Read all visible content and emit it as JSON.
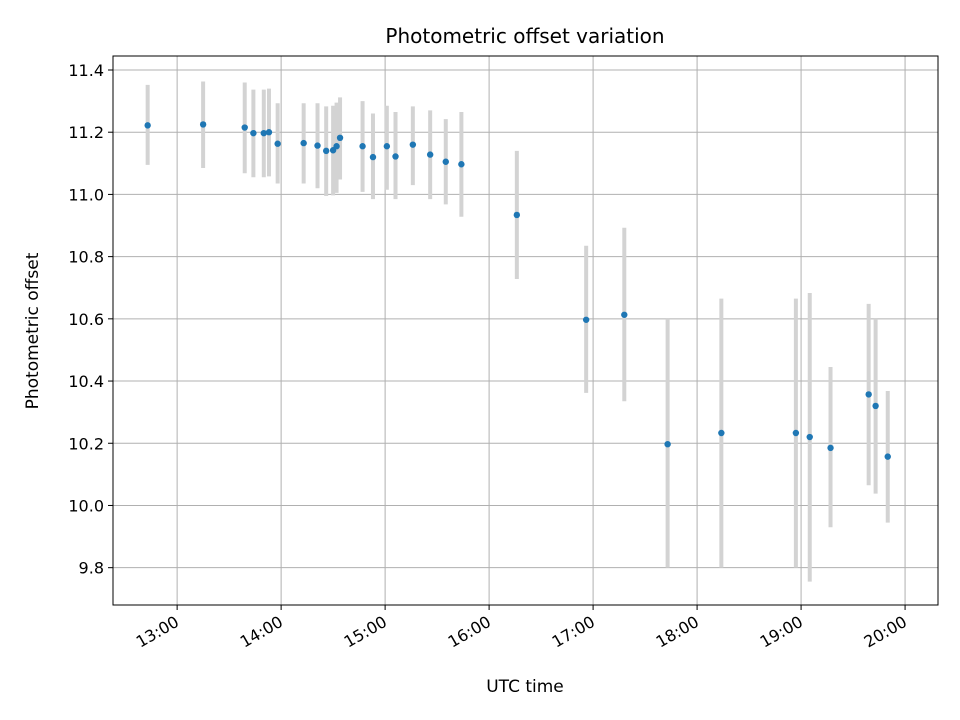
{
  "chart_data": {
    "type": "scatter",
    "title": "Photometric offset variation",
    "xlabel": "UTC time",
    "ylabel": "Photometric offset",
    "x_ticks": [
      "13:00",
      "14:00",
      "15:00",
      "16:00",
      "17:00",
      "18:00",
      "19:00",
      "20:00"
    ],
    "y_ticks": [
      "9.8",
      "10.0",
      "10.2",
      "10.4",
      "10.6",
      "10.8",
      "11.0",
      "11.2",
      "11.4"
    ],
    "xlim": [
      "12:23",
      "20:19"
    ],
    "ylim": [
      9.68,
      11.445
    ],
    "grid": true,
    "point_color": "#1f77b4",
    "errorbar_color": "#d3d3d3",
    "points": [
      {
        "x": "12:43",
        "y": 11.222,
        "ylow": 11.095,
        "yhigh": 11.352
      },
      {
        "x": "13:15",
        "y": 11.225,
        "ylow": 11.085,
        "yhigh": 11.363
      },
      {
        "x": "13:39",
        "y": 11.215,
        "ylow": 11.068,
        "yhigh": 11.36
      },
      {
        "x": "13:44",
        "y": 11.197,
        "ylow": 11.055,
        "yhigh": 11.337
      },
      {
        "x": "13:50",
        "y": 11.197,
        "ylow": 11.055,
        "yhigh": 11.337
      },
      {
        "x": "13:53",
        "y": 11.2,
        "ylow": 11.058,
        "yhigh": 11.34
      },
      {
        "x": "13:58",
        "y": 11.163,
        "ylow": 11.035,
        "yhigh": 11.293
      },
      {
        "x": "14:13",
        "y": 11.165,
        "ylow": 11.035,
        "yhigh": 11.293
      },
      {
        "x": "14:21",
        "y": 11.157,
        "ylow": 11.02,
        "yhigh": 11.293
      },
      {
        "x": "14:26",
        "y": 11.14,
        "ylow": 10.995,
        "yhigh": 11.283
      },
      {
        "x": "14:30",
        "y": 11.142,
        "ylow": 10.997,
        "yhigh": 11.285
      },
      {
        "x": "14:32",
        "y": 11.155,
        "ylow": 11.005,
        "yhigh": 11.295
      },
      {
        "x": "14:34",
        "y": 11.182,
        "ylow": 11.048,
        "yhigh": 11.312
      },
      {
        "x": "14:47",
        "y": 11.155,
        "ylow": 11.008,
        "yhigh": 11.3
      },
      {
        "x": "14:53",
        "y": 11.12,
        "ylow": 10.985,
        "yhigh": 11.26
      },
      {
        "x": "15:01",
        "y": 11.155,
        "ylow": 11.015,
        "yhigh": 11.285
      },
      {
        "x": "15:06",
        "y": 11.122,
        "ylow": 10.985,
        "yhigh": 11.265
      },
      {
        "x": "15:16",
        "y": 11.16,
        "ylow": 11.03,
        "yhigh": 11.283
      },
      {
        "x": "15:26",
        "y": 11.128,
        "ylow": 10.985,
        "yhigh": 11.27
      },
      {
        "x": "15:35",
        "y": 11.105,
        "ylow": 10.968,
        "yhigh": 11.242
      },
      {
        "x": "15:44",
        "y": 11.097,
        "ylow": 10.928,
        "yhigh": 11.265
      },
      {
        "x": "16:16",
        "y": 10.934,
        "ylow": 10.728,
        "yhigh": 11.14
      },
      {
        "x": "16:56",
        "y": 10.597,
        "ylow": 10.362,
        "yhigh": 10.835
      },
      {
        "x": "17:18",
        "y": 10.613,
        "ylow": 10.335,
        "yhigh": 10.893
      },
      {
        "x": "17:43",
        "y": 10.197,
        "ylow": 9.8,
        "yhigh": 10.6
      },
      {
        "x": "18:14",
        "y": 10.233,
        "ylow": 9.8,
        "yhigh": 10.665
      },
      {
        "x": "18:57",
        "y": 10.233,
        "ylow": 9.8,
        "yhigh": 10.665
      },
      {
        "x": "19:05",
        "y": 10.22,
        "ylow": 9.755,
        "yhigh": 10.683
      },
      {
        "x": "19:17",
        "y": 10.185,
        "ylow": 9.93,
        "yhigh": 10.445
      },
      {
        "x": "19:39",
        "y": 10.357,
        "ylow": 10.065,
        "yhigh": 10.648
      },
      {
        "x": "19:43",
        "y": 10.32,
        "ylow": 10.038,
        "yhigh": 10.6
      },
      {
        "x": "19:50",
        "y": 10.157,
        "ylow": 9.945,
        "yhigh": 10.368
      }
    ]
  }
}
